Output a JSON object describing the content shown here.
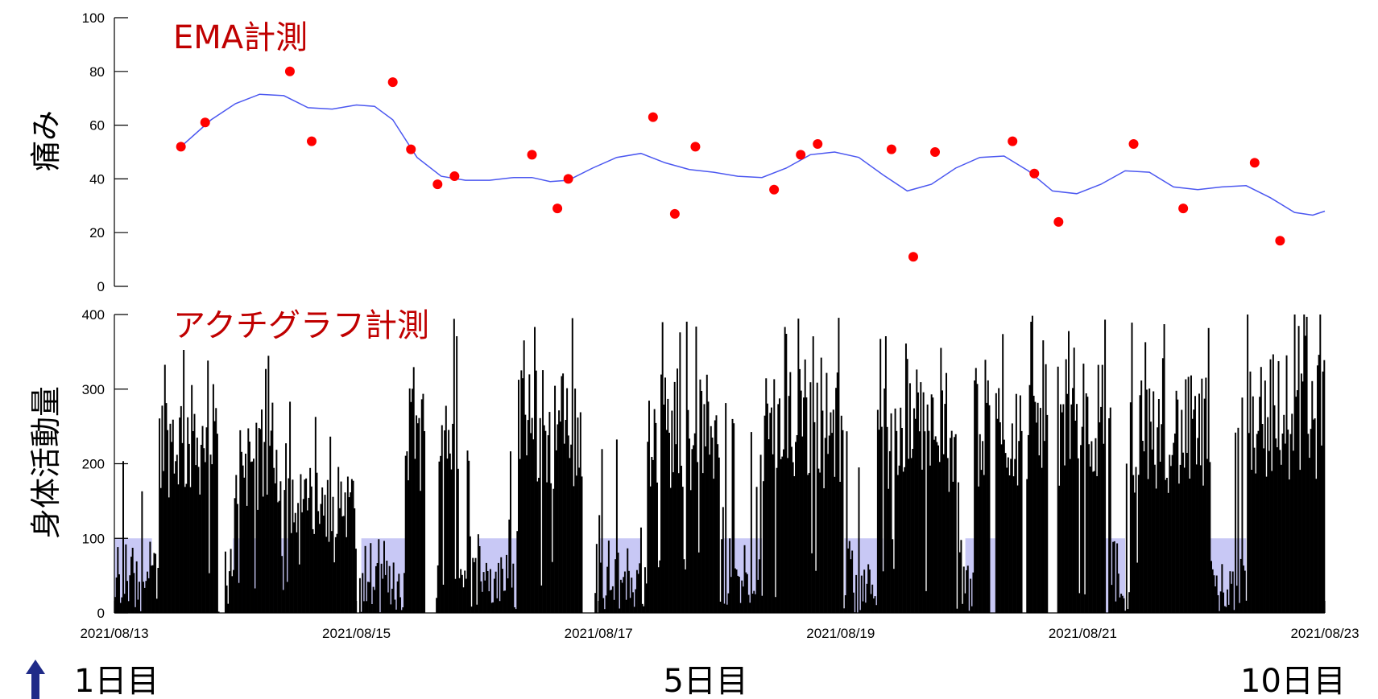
{
  "chart_data": [
    {
      "type": "scatter",
      "title": "EMA計測",
      "ylabel": "痛み",
      "ylim": [
        0,
        100
      ],
      "yticks": [
        "0",
        "20",
        "40",
        "60",
        "80",
        "100"
      ],
      "xlim": [
        "2021/08/13",
        "2021/08/23"
      ],
      "x_unit": "days since 2021/08/13",
      "points": [
        {
          "x": 0.55,
          "y": 52
        },
        {
          "x": 0.75,
          "y": 61
        },
        {
          "x": 1.45,
          "y": 80
        },
        {
          "x": 1.63,
          "y": 54
        },
        {
          "x": 2.3,
          "y": 76
        },
        {
          "x": 2.45,
          "y": 51
        },
        {
          "x": 2.67,
          "y": 38
        },
        {
          "x": 2.81,
          "y": 41
        },
        {
          "x": 3.45,
          "y": 49
        },
        {
          "x": 3.66,
          "y": 29
        },
        {
          "x": 3.75,
          "y": 40
        },
        {
          "x": 4.45,
          "y": 63
        },
        {
          "x": 4.63,
          "y": 27
        },
        {
          "x": 4.8,
          "y": 52
        },
        {
          "x": 5.45,
          "y": 36
        },
        {
          "x": 5.67,
          "y": 49
        },
        {
          "x": 5.81,
          "y": 53
        },
        {
          "x": 6.42,
          "y": 51
        },
        {
          "x": 6.6,
          "y": 11
        },
        {
          "x": 6.78,
          "y": 50
        },
        {
          "x": 7.42,
          "y": 54
        },
        {
          "x": 7.6,
          "y": 42
        },
        {
          "x": 7.8,
          "y": 24
        },
        {
          "x": 8.42,
          "y": 53
        },
        {
          "x": 8.83,
          "y": 29
        },
        {
          "x": 9.42,
          "y": 46
        },
        {
          "x": 9.63,
          "y": 17
        }
      ],
      "trend": [
        {
          "x": 0.55,
          "y": 52
        },
        {
          "x": 0.8,
          "y": 62
        },
        {
          "x": 1.0,
          "y": 68
        },
        {
          "x": 1.2,
          "y": 71.5
        },
        {
          "x": 1.4,
          "y": 71
        },
        {
          "x": 1.6,
          "y": 66.5
        },
        {
          "x": 1.8,
          "y": 66
        },
        {
          "x": 2.0,
          "y": 67.5
        },
        {
          "x": 2.15,
          "y": 67
        },
        {
          "x": 2.3,
          "y": 62
        },
        {
          "x": 2.5,
          "y": 48
        },
        {
          "x": 2.7,
          "y": 41
        },
        {
          "x": 2.9,
          "y": 39.5
        },
        {
          "x": 3.1,
          "y": 39.5
        },
        {
          "x": 3.3,
          "y": 40.5
        },
        {
          "x": 3.45,
          "y": 40.5
        },
        {
          "x": 3.6,
          "y": 39
        },
        {
          "x": 3.75,
          "y": 39.5
        },
        {
          "x": 3.95,
          "y": 44
        },
        {
          "x": 4.15,
          "y": 48
        },
        {
          "x": 4.35,
          "y": 49.5
        },
        {
          "x": 4.55,
          "y": 46
        },
        {
          "x": 4.75,
          "y": 43.5
        },
        {
          "x": 4.95,
          "y": 42.5
        },
        {
          "x": 5.15,
          "y": 41
        },
        {
          "x": 5.35,
          "y": 40.5
        },
        {
          "x": 5.55,
          "y": 44
        },
        {
          "x": 5.75,
          "y": 49
        },
        {
          "x": 5.95,
          "y": 50
        },
        {
          "x": 6.15,
          "y": 48
        },
        {
          "x": 6.35,
          "y": 41.5
        },
        {
          "x": 6.55,
          "y": 35.5
        },
        {
          "x": 6.75,
          "y": 38
        },
        {
          "x": 6.95,
          "y": 44
        },
        {
          "x": 7.15,
          "y": 48
        },
        {
          "x": 7.35,
          "y": 48.5
        },
        {
          "x": 7.55,
          "y": 43
        },
        {
          "x": 7.75,
          "y": 35.5
        },
        {
          "x": 7.95,
          "y": 34.5
        },
        {
          "x": 8.15,
          "y": 38
        },
        {
          "x": 8.35,
          "y": 43
        },
        {
          "x": 8.55,
          "y": 42.5
        },
        {
          "x": 8.75,
          "y": 37
        },
        {
          "x": 8.95,
          "y": 36
        },
        {
          "x": 9.15,
          "y": 37
        },
        {
          "x": 9.35,
          "y": 37.5
        },
        {
          "x": 9.55,
          "y": 33
        },
        {
          "x": 9.75,
          "y": 27.5
        },
        {
          "x": 9.9,
          "y": 26.5
        },
        {
          "x": 10.0,
          "y": 28
        }
      ],
      "marker_color": "#ff0000",
      "line_color": "#4b57f0"
    },
    {
      "type": "bar",
      "title": "アクチグラフ計測",
      "ylabel": "身体活動量",
      "ylim": [
        0,
        400
      ],
      "yticks": [
        "0",
        "100",
        "200",
        "300",
        "400"
      ],
      "xticks": [
        "2021/08/13",
        "2021/08/15",
        "2021/08/17",
        "2021/08/19",
        "2021/08/21",
        "2021/08/23"
      ],
      "xlim": [
        "2021/08/13",
        "2021/08/23"
      ],
      "x_unit": "days since 2021/08/13",
      "bar_color": "#000000",
      "band_color": "#c8c8f5",
      "band_level": 100,
      "band_intervals": [
        [
          0.0,
          0.31
        ],
        [
          0.98,
          1.45
        ],
        [
          2.04,
          2.45
        ],
        [
          3.0,
          3.35
        ],
        [
          4.0,
          4.35
        ],
        [
          5.02,
          5.35
        ],
        [
          6.03,
          6.35
        ],
        [
          7.03,
          7.35
        ],
        [
          8.03,
          8.35
        ],
        [
          9.03,
          9.35
        ]
      ],
      "gap_intervals": [
        [
          0.86,
          0.9
        ],
        [
          1.99,
          2.02
        ],
        [
          2.56,
          2.65
        ],
        [
          3.86,
          3.96
        ],
        [
          7.23,
          7.27
        ],
        [
          7.49,
          7.53
        ],
        [
          7.71,
          7.78
        ],
        [
          8.18,
          8.21
        ],
        [
          9.99,
          10.0
        ]
      ],
      "active_blocks": [
        {
          "start": 0.36,
          "end": 0.85,
          "level": 280
        },
        {
          "start": 1.0,
          "end": 1.45,
          "level": 250
        },
        {
          "start": 1.45,
          "end": 1.98,
          "level": 180
        },
        {
          "start": 2.4,
          "end": 2.56,
          "level": 290
        },
        {
          "start": 2.65,
          "end": 2.84,
          "level": 300
        },
        {
          "start": 3.33,
          "end": 3.86,
          "level": 300
        },
        {
          "start": 4.38,
          "end": 5.0,
          "level": 295
        },
        {
          "start": 5.35,
          "end": 6.02,
          "level": 300
        },
        {
          "start": 6.3,
          "end": 6.95,
          "level": 290
        },
        {
          "start": 7.1,
          "end": 7.72,
          "level": 300
        },
        {
          "start": 7.78,
          "end": 8.2,
          "level": 310
        },
        {
          "start": 8.38,
          "end": 9.05,
          "level": 290
        },
        {
          "start": 9.35,
          "end": 9.99,
          "level": 320
        }
      ]
    }
  ],
  "day_labels": [
    {
      "text": "1日目",
      "x": 0
    },
    {
      "text": "5日目",
      "x": 4.9
    },
    {
      "text": "10日目",
      "x": 9.95
    }
  ],
  "arrow_color": "#1f2a88"
}
